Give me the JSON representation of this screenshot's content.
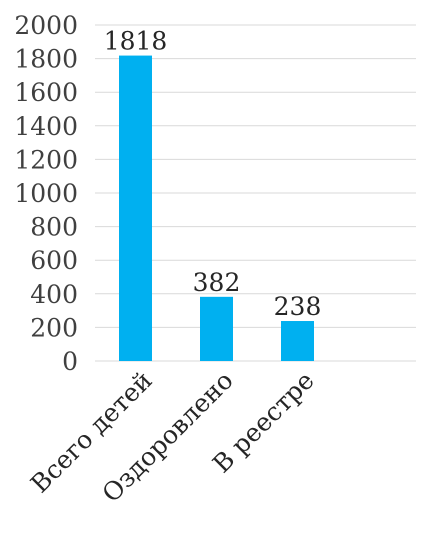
{
  "chart_data": {
    "type": "bar",
    "categories": [
      "Всего детей",
      "Оздоровлено",
      "В реестре"
    ],
    "values": [
      1818,
      382,
      238
    ],
    "data_labels": [
      "1818",
      "382",
      "238"
    ],
    "y_ticks": [
      "0",
      "200",
      "400",
      "600",
      "800",
      "1000",
      "1200",
      "1400",
      "1600",
      "1800",
      "2000"
    ],
    "ylim": [
      0,
      2000
    ],
    "y_step": 200,
    "grid": true,
    "legend": false,
    "bar_color": "#00b0f0",
    "title": "",
    "xlabel": "",
    "ylabel": ""
  }
}
